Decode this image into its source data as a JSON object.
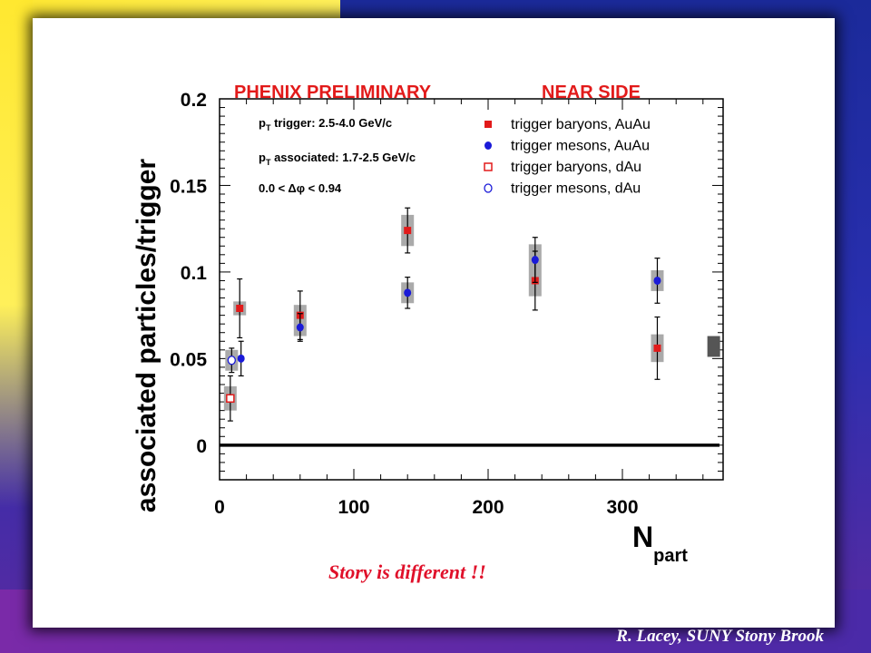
{
  "colors": {
    "accent_red": "#e21a1a",
    "marker_blue": "#1a1ad8",
    "error_box": "#aaaaaa"
  },
  "caption": "Story is different !!",
  "credit": "R. Lacey, SUNY  Stony Brook",
  "chart_data": {
    "type": "scatter",
    "header_left": "PHENIX PRELIMINARY",
    "header_right": "NEAR SIDE",
    "ylabel": "associated  particles/trigger",
    "xlabel_main": "N",
    "xlabel_sub": "part",
    "xlim": [
      0,
      375
    ],
    "ylim": [
      -0.02,
      0.2
    ],
    "x_ticks": [
      "0",
      "100",
      "200",
      "300"
    ],
    "y_ticks": [
      "0",
      "0.05",
      "0.1",
      "0.15",
      "0.2"
    ],
    "cuts": [
      {
        "base": "p",
        "sub": "T",
        "text": " trigger: 2.5-4.0 GeV/c"
      },
      {
        "base": "p",
        "sub": "T",
        "text": " associated: 1.7-2.5 GeV/c"
      },
      {
        "base": "0.0 < ",
        "sub": "",
        "text": "Δφ < 0.94"
      }
    ],
    "series": [
      {
        "name": "trigger baryons, AuAu",
        "marker": "square",
        "fill": true,
        "color": "#e21a1a",
        "points": [
          {
            "x": 15,
            "y": 0.079,
            "err": 0.017
          },
          {
            "x": 60,
            "y": 0.075,
            "err": 0.014
          },
          {
            "x": 140,
            "y": 0.124,
            "err": 0.013
          },
          {
            "x": 235,
            "y": 0.095,
            "err": 0.017
          },
          {
            "x": 326,
            "y": 0.056,
            "err": 0.018
          }
        ]
      },
      {
        "name": "trigger mesons, AuAu",
        "marker": "circle",
        "fill": true,
        "color": "#1a1ad8",
        "points": [
          {
            "x": 16,
            "y": 0.05,
            "err": 0.01
          },
          {
            "x": 60,
            "y": 0.068,
            "err": 0.008
          },
          {
            "x": 140,
            "y": 0.088,
            "err": 0.009
          },
          {
            "x": 235,
            "y": 0.107,
            "err": 0.013
          },
          {
            "x": 326,
            "y": 0.095,
            "err": 0.013
          }
        ]
      },
      {
        "name": "trigger baryons, dAu",
        "marker": "square",
        "fill": false,
        "color": "#e21a1a",
        "points": [
          {
            "x": 8,
            "y": 0.027,
            "err": 0.013
          }
        ]
      },
      {
        "name": "trigger mesons, dAu",
        "marker": "circle",
        "fill": false,
        "color": "#1a1ad8",
        "points": [
          {
            "x": 9,
            "y": 0.049,
            "err": 0.007
          }
        ]
      }
    ],
    "systematic_boxes": [
      {
        "x": 9,
        "y": 0.049,
        "half": 0.006
      },
      {
        "x": 8,
        "y": 0.027,
        "half": 0.007
      },
      {
        "x": 15,
        "y": 0.079,
        "half": 0.004
      },
      {
        "x": 60,
        "y": 0.072,
        "half": 0.009
      },
      {
        "x": 140,
        "y": 0.124,
        "half": 0.009
      },
      {
        "x": 140,
        "y": 0.088,
        "half": 0.006
      },
      {
        "x": 235,
        "y": 0.101,
        "half": 0.015
      },
      {
        "x": 326,
        "y": 0.095,
        "half": 0.006
      },
      {
        "x": 326,
        "y": 0.056,
        "half": 0.008
      }
    ],
    "global_box": {
      "x": 368,
      "y": 0.057,
      "half": 0.006
    },
    "zero_line": 0
  }
}
